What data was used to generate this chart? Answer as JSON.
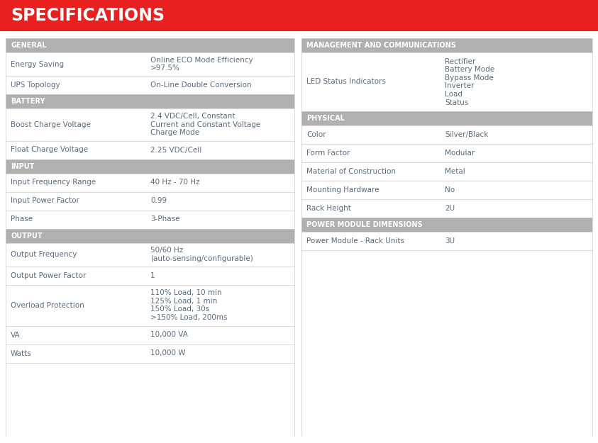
{
  "title": "SPECIFICATIONS",
  "title_bg": "#e82020",
  "title_color": "#ffffff",
  "bg_color": "#ffffff",
  "section_header_bg": "#b0b0b0",
  "section_header_color": "#ffffff",
  "row_bg_white": "#ffffff",
  "label_color": "#5a6a7a",
  "value_color": "#5a6a7a",
  "divider_color": "#cccccc",
  "left_sections": [
    {
      "header": "GENERAL",
      "rows": [
        {
          "label": "Energy Saving",
          "value": "Online ECO Mode Efficiency\n>97.5%"
        },
        {
          "label": "UPS Topology",
          "value": "On-Line Double Conversion"
        }
      ]
    },
    {
      "header": "BATTERY",
      "rows": [
        {
          "label": "Boost Charge Voltage",
          "value": "2.4 VDC/Cell, Constant\nCurrent and Constant Voltage\nCharge Mode"
        },
        {
          "label": "Float Charge Voltage",
          "value": "2.25 VDC/Cell"
        }
      ]
    },
    {
      "header": "INPUT",
      "rows": [
        {
          "label": "Input Frequency Range",
          "value": "40 Hz - 70 Hz"
        },
        {
          "label": "Input Power Factor",
          "value": "0.99"
        },
        {
          "label": "Phase",
          "value": "3-Phase"
        }
      ]
    },
    {
      "header": "OUTPUT",
      "rows": [
        {
          "label": "Output Frequency",
          "value": "50/60 Hz\n(auto-sensing/configurable)"
        },
        {
          "label": "Output Power Factor",
          "value": "1"
        },
        {
          "label": "Overload Protection",
          "value": "110% Load, 10 min\n125% Load, 1 min\n150% Load, 30s\n>150% Load, 200ms"
        },
        {
          "label": "VA",
          "value": "10,000 VA"
        },
        {
          "label": "Watts",
          "value": "10,000 W"
        }
      ]
    }
  ],
  "right_sections": [
    {
      "header": "MANAGEMENT AND COMMUNICATIONS",
      "rows": [
        {
          "label": "LED Status Indicators",
          "value": "Rectifier\nBattery Mode\nBypass Mode\nInverter\nLoad\nStatus"
        }
      ]
    },
    {
      "header": "PHYSICAL",
      "rows": [
        {
          "label": "Color",
          "value": "Silver/Black"
        },
        {
          "label": "Form Factor",
          "value": "Modular"
        },
        {
          "label": "Material of Construction",
          "value": "Metal"
        },
        {
          "label": "Mounting Hardware",
          "value": "No"
        },
        {
          "label": "Rack Height",
          "value": "2U"
        }
      ]
    },
    {
      "header": "POWER MODULE DIMENSIONS",
      "rows": [
        {
          "label": "Power Module - Rack Units",
          "value": "3U"
        }
      ]
    }
  ]
}
